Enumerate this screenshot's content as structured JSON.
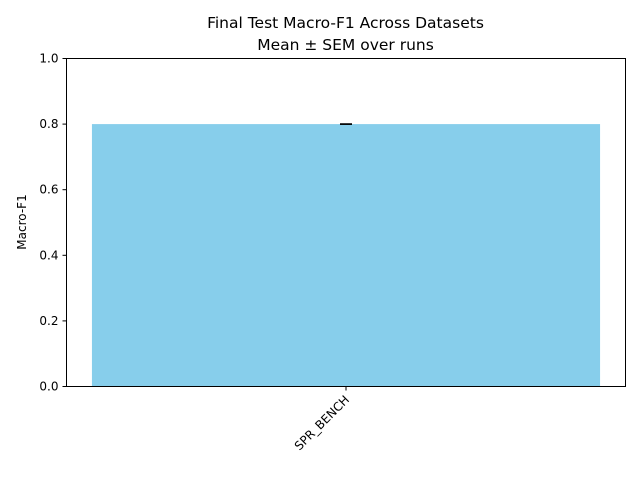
{
  "chart_data": {
    "type": "bar",
    "title": "Final Test Macro-F1 Across Datasets",
    "subtitle": "Mean ± SEM over runs",
    "xlabel": "",
    "ylabel": "Macro-F1",
    "categories": [
      "SPR_BENCH"
    ],
    "values": [
      0.8
    ],
    "errors": [
      0.0
    ],
    "ylim": [
      0,
      1.0
    ],
    "yticks": [
      "0.0",
      "0.2",
      "0.4",
      "0.6",
      "0.8",
      "1.0"
    ],
    "grid": false,
    "bar_color": "#87ceeb",
    "error_color": "#000000"
  }
}
